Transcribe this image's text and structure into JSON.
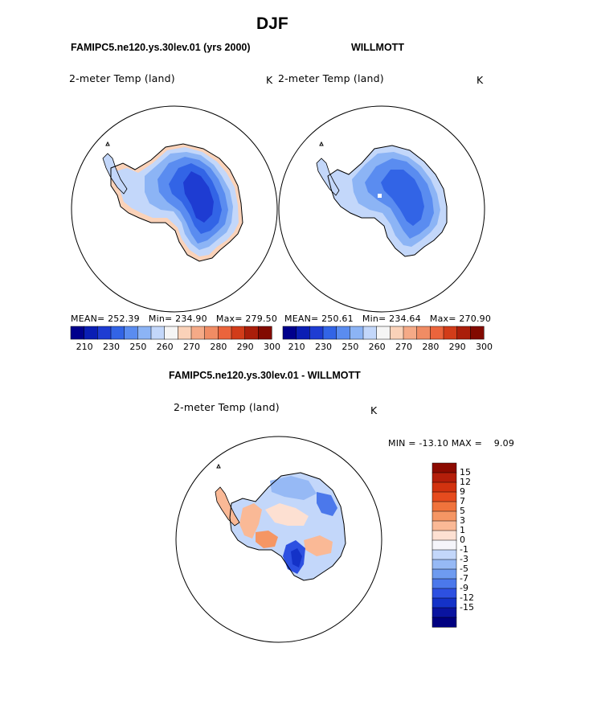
{
  "page_title": "DJF",
  "panels": [
    {
      "title": "FAMIPC5.ne120.ys.30lev.01 (yrs 2000)",
      "variable": "2-meter Temp (land)",
      "units": "K",
      "stats": "MEAN= 252.39   Min= 234.90   Max= 279.50",
      "colorbar_ticks": [
        "210",
        "230",
        "250",
        "260",
        "270",
        "280",
        "290",
        "300"
      ]
    },
    {
      "title": "WILLMOTT",
      "variable": "2-meter Temp (land)",
      "units": "K",
      "stats": "MEAN= 250.61   Min= 234.64   Max= 270.90",
      "colorbar_ticks": [
        "210",
        "230",
        "250",
        "260",
        "270",
        "280",
        "290",
        "300"
      ]
    }
  ],
  "diff_panel": {
    "title": "FAMIPC5.ne120.ys.30lev.01 - WILLMOTT",
    "variable": "2-meter Temp (land)",
    "units": "K",
    "stats": "MIN = -13.10 MAX =    9.09",
    "colorbar_ticks": [
      "15",
      "12",
      "9",
      "7",
      "5",
      "3",
      "1",
      "0",
      "-1",
      "-3",
      "-5",
      "-7",
      "-9",
      "-12",
      "-15"
    ]
  },
  "colors": {
    "temp_scale": [
      "#00008c",
      "#0a1eb4",
      "#1e3cd2",
      "#3264e6",
      "#5a8cf0",
      "#8cb4f5",
      "#c3d7fa",
      "#f5f5f5",
      "#fad2b9",
      "#f5aa87",
      "#f08c64",
      "#eb643c",
      "#d23c19",
      "#aa1e0a",
      "#820a00"
    ],
    "diff_scale": [
      "#8c0a00",
      "#b41e0a",
      "#d2320f",
      "#e64b1e",
      "#f0733c",
      "#f59664",
      "#fab996",
      "#fde0d2",
      "#f5f5fa",
      "#c3d7fa",
      "#96b9f5",
      "#6e9bf0",
      "#4b78eb",
      "#2d50e1",
      "#1432c8",
      "#0a14a0",
      "#000080"
    ]
  }
}
